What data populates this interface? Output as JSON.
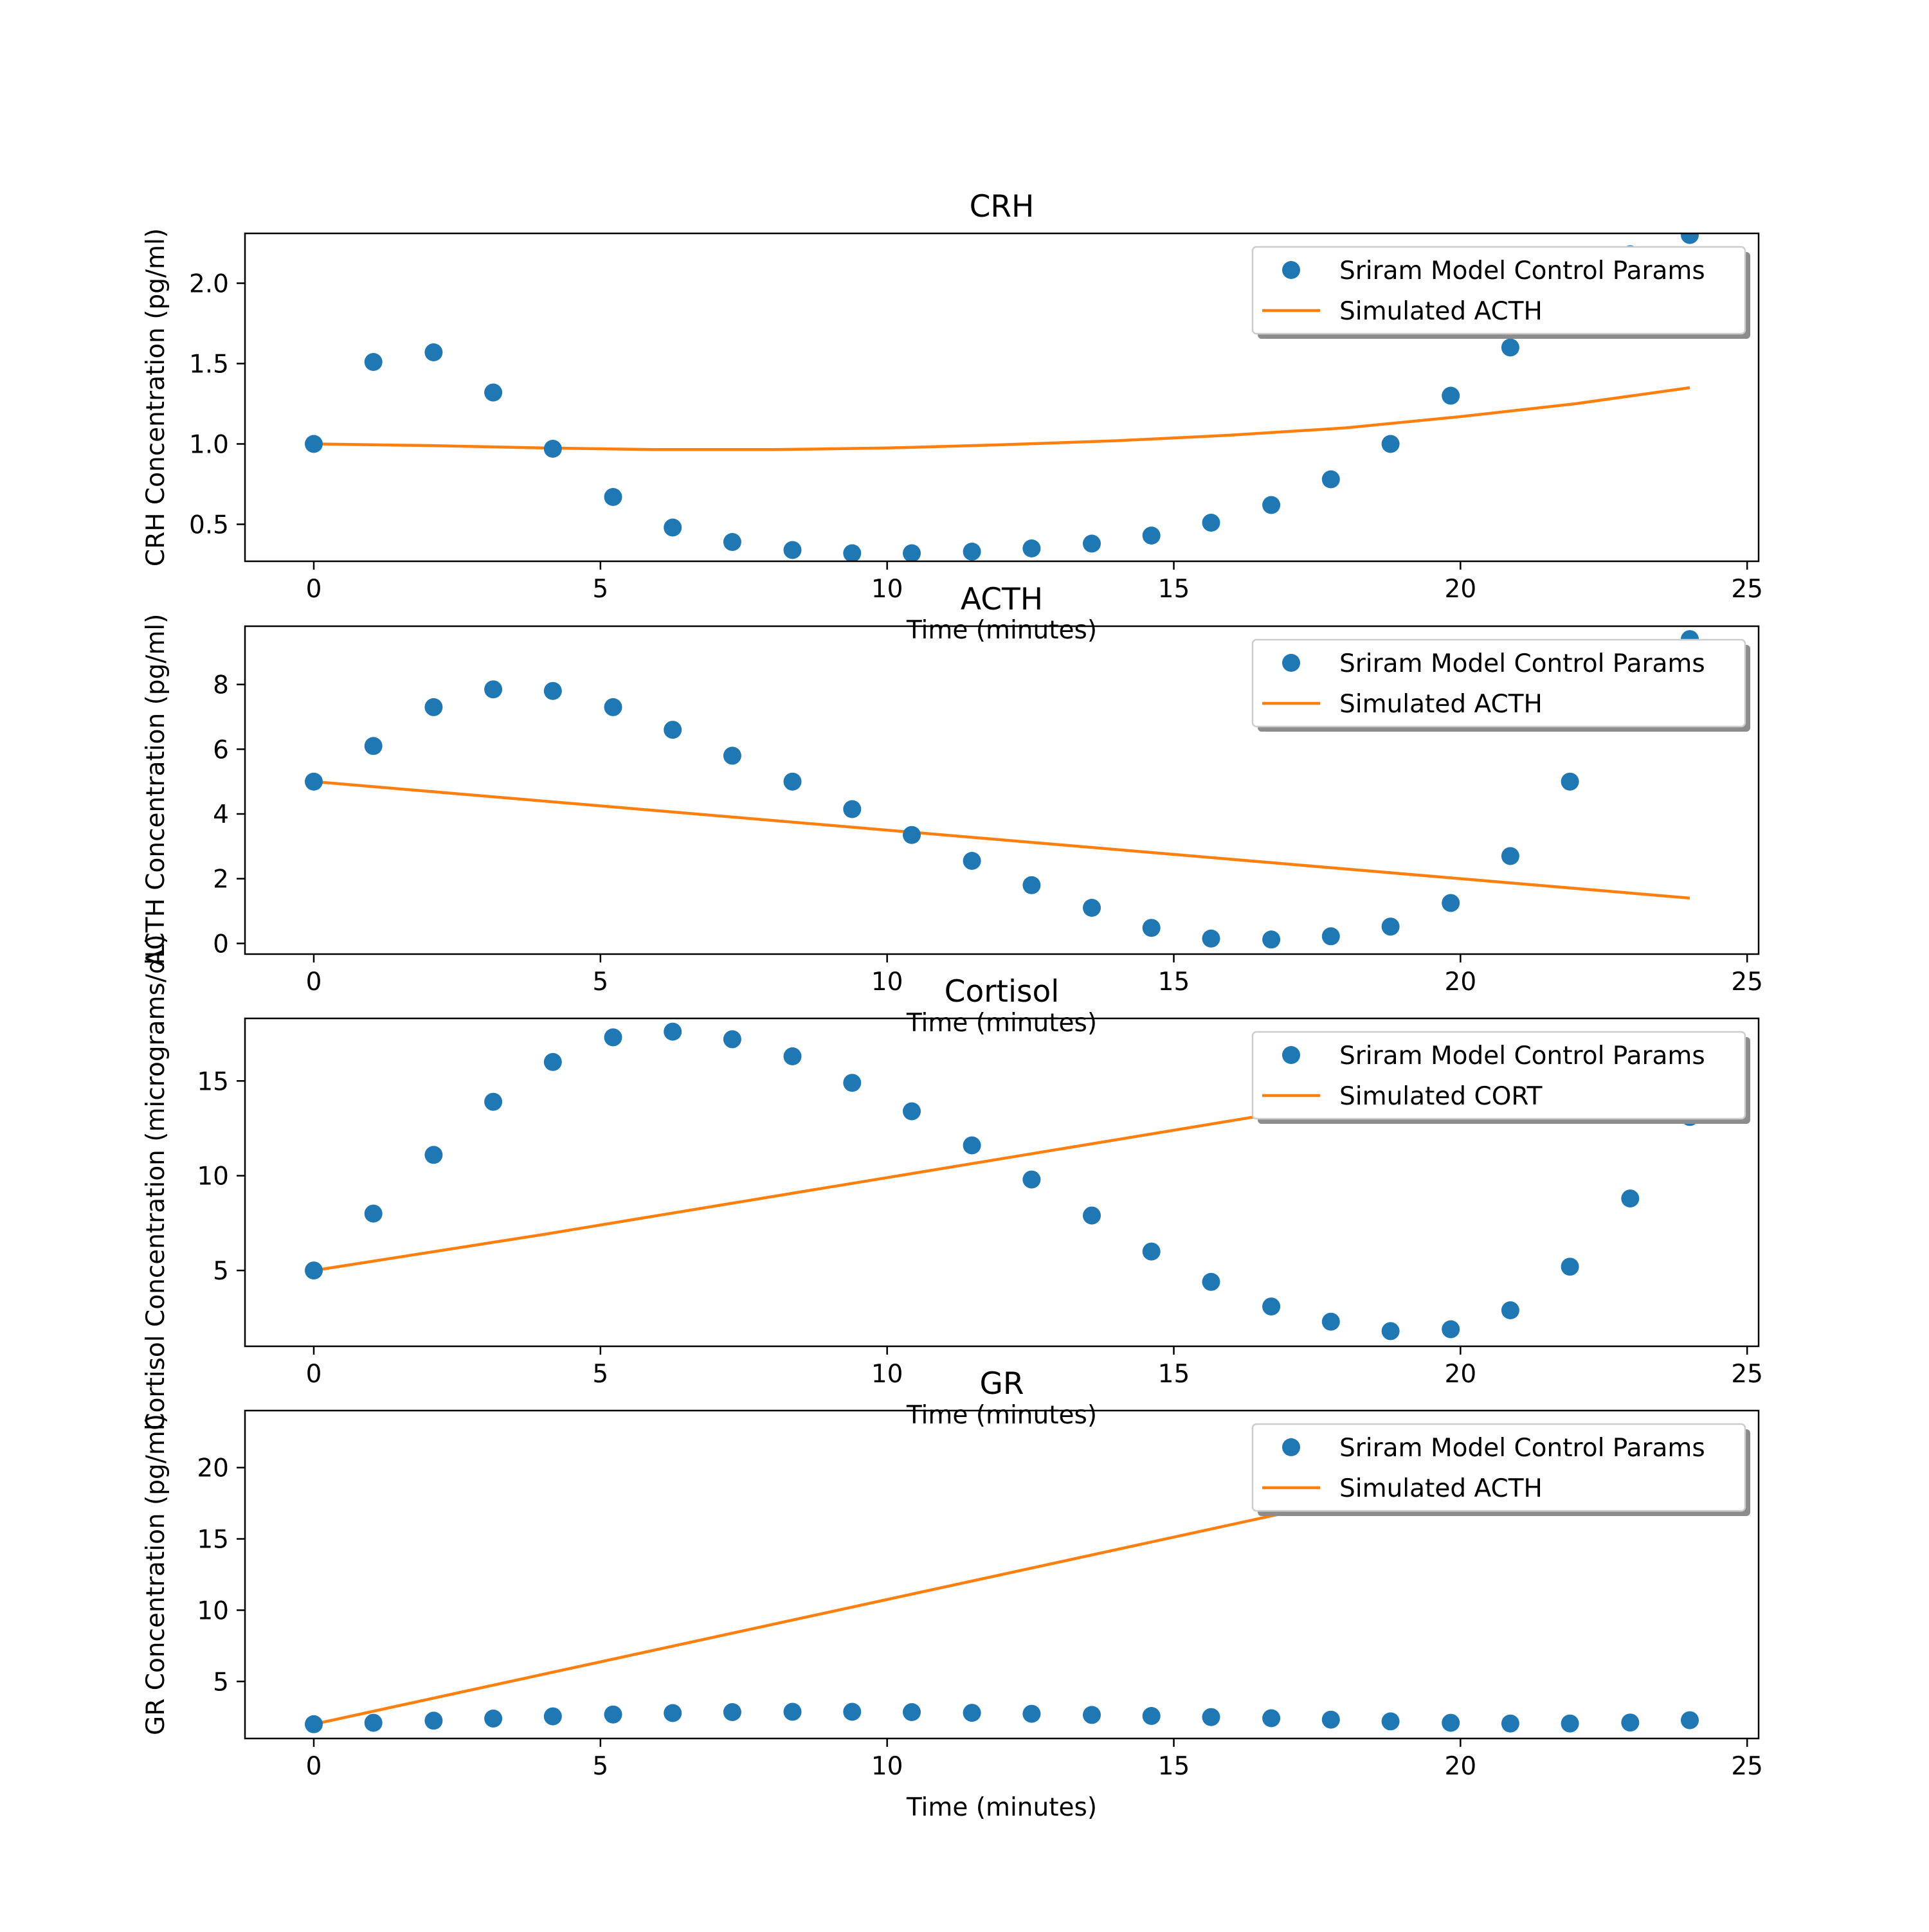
{
  "colors": {
    "scatter": "#1f77b4",
    "line": "#ff7f0e",
    "axis": "#000000",
    "legend_border": "#cccccc"
  },
  "chart_data": [
    {
      "type": "scatter",
      "title": "CRH",
      "xlabel": "Time (minutes)",
      "ylabel": "CRH Concentration (pg/ml)",
      "xlim": [
        -1.2,
        25.2
      ],
      "ylim": [
        0.27,
        2.31
      ],
      "xticks": [
        0,
        5,
        10,
        15,
        20,
        25
      ],
      "xtick_labels": [
        "0",
        "5",
        "10",
        "15",
        "20",
        "25"
      ],
      "yticks": [
        0.5,
        1.0,
        1.5,
        2.0
      ],
      "ytick_labels": [
        "0.5",
        "1.0",
        "1.5",
        "2.0"
      ],
      "legend_position": "upper right",
      "series": [
        {
          "name": "Sriram Model Control Params",
          "kind": "scatter",
          "x": [
            0,
            1.04,
            2.09,
            3.13,
            4.17,
            5.22,
            6.26,
            7.3,
            8.35,
            9.39,
            10.43,
            11.48,
            12.52,
            13.57,
            14.61,
            15.65,
            16.7,
            17.74,
            18.78,
            19.83,
            20.87,
            21.91,
            22.96,
            24.0
          ],
          "y": [
            1.0,
            1.51,
            1.57,
            1.32,
            0.97,
            0.67,
            0.48,
            0.39,
            0.34,
            0.32,
            0.32,
            0.33,
            0.35,
            0.38,
            0.43,
            0.51,
            0.62,
            0.78,
            1.0,
            1.3,
            1.6,
            1.95,
            2.18,
            2.3
          ]
        },
        {
          "name": "Simulated ACTH",
          "kind": "line",
          "x": [
            0,
            2,
            4,
            6,
            8,
            10,
            12,
            14,
            16,
            18,
            20,
            22,
            24
          ],
          "y": [
            1.0,
            0.99,
            0.975,
            0.965,
            0.965,
            0.975,
            0.995,
            1.02,
            1.055,
            1.1,
            1.17,
            1.25,
            1.35
          ]
        }
      ]
    },
    {
      "type": "scatter",
      "title": "ACTH",
      "xlabel": "Time (minutes)",
      "ylabel": "ACTH Concentration (pg/ml)",
      "xlim": [
        -1.2,
        25.2
      ],
      "ylim": [
        -0.33,
        9.8
      ],
      "xticks": [
        0,
        5,
        10,
        15,
        20,
        25
      ],
      "xtick_labels": [
        "0",
        "5",
        "10",
        "15",
        "20",
        "25"
      ],
      "yticks": [
        0,
        2,
        4,
        6,
        8
      ],
      "ytick_labels": [
        "0",
        "2",
        "4",
        "6",
        "8"
      ],
      "legend_position": "upper right",
      "series": [
        {
          "name": "Sriram Model Control Params",
          "kind": "scatter",
          "x": [
            0,
            1.04,
            2.09,
            3.13,
            4.17,
            5.22,
            6.26,
            7.3,
            8.35,
            9.39,
            10.43,
            11.48,
            12.52,
            13.57,
            14.61,
            15.65,
            16.7,
            17.74,
            18.78,
            19.83,
            20.87,
            21.91,
            22.96,
            24.0
          ],
          "y": [
            5.0,
            6.1,
            7.3,
            7.85,
            7.8,
            7.3,
            6.6,
            5.8,
            5.0,
            4.15,
            3.35,
            2.55,
            1.8,
            1.1,
            0.48,
            0.15,
            0.12,
            0.22,
            0.52,
            1.25,
            2.7,
            5.0,
            7.9,
            9.4
          ]
        },
        {
          "name": "Simulated ACTH",
          "kind": "line",
          "x": [
            0,
            24.0
          ],
          "y": [
            5.0,
            1.4
          ]
        }
      ]
    },
    {
      "type": "scatter",
      "title": "Cortisol",
      "xlabel": "Time (minutes)",
      "ylabel": "Cortisol Concentration (micrograms/dL)",
      "xlim": [
        -1.2,
        25.2
      ],
      "ylim": [
        1.0,
        18.3
      ],
      "xticks": [
        0,
        5,
        10,
        15,
        20,
        25
      ],
      "xtick_labels": [
        "0",
        "5",
        "10",
        "15",
        "20",
        "25"
      ],
      "yticks": [
        5,
        10,
        15
      ],
      "ytick_labels": [
        "5",
        "10",
        "15"
      ],
      "legend_position": "upper right",
      "series": [
        {
          "name": "Sriram Model Control Params",
          "kind": "scatter",
          "x": [
            0,
            1.04,
            2.09,
            3.13,
            4.17,
            5.22,
            6.26,
            7.3,
            8.35,
            9.39,
            10.43,
            11.48,
            12.52,
            13.57,
            14.61,
            15.65,
            16.7,
            17.74,
            18.78,
            19.83,
            20.87,
            21.91,
            22.96,
            24.0
          ],
          "y": [
            5.0,
            8.0,
            11.1,
            13.9,
            16.0,
            17.3,
            17.6,
            17.2,
            16.3,
            14.9,
            13.4,
            11.6,
            9.8,
            7.9,
            6.0,
            4.4,
            3.1,
            2.3,
            1.8,
            1.9,
            2.9,
            5.2,
            8.8,
            13.1
          ]
        },
        {
          "name": "Simulated CORT",
          "kind": "line",
          "x": [
            0,
            4,
            8,
            12,
            16,
            20,
            24
          ],
          "y": [
            5.0,
            6.9,
            8.9,
            10.9,
            12.9,
            14.9,
            16.9
          ]
        }
      ]
    },
    {
      "type": "scatter",
      "title": "GR",
      "xlabel": "Time (minutes)",
      "ylabel": "GR Concentration (pg/ml)",
      "xlim": [
        -1.2,
        25.2
      ],
      "ylim": [
        1.0,
        24.0
      ],
      "xticks": [
        0,
        5,
        10,
        15,
        20,
        25
      ],
      "xtick_labels": [
        "0",
        "5",
        "10",
        "15",
        "20",
        "25"
      ],
      "yticks": [
        5,
        10,
        15,
        20
      ],
      "ytick_labels": [
        "5",
        "10",
        "15",
        "20"
      ],
      "legend_position": "upper right",
      "series": [
        {
          "name": "Sriram Model Control Params",
          "kind": "scatter",
          "x": [
            0,
            1.04,
            2.09,
            3.13,
            4.17,
            5.22,
            6.26,
            7.3,
            8.35,
            9.39,
            10.43,
            11.48,
            12.52,
            13.57,
            14.61,
            15.65,
            16.7,
            17.74,
            18.78,
            19.83,
            20.87,
            21.91,
            22.96,
            24.0
          ],
          "y": [
            2.0,
            2.1,
            2.25,
            2.4,
            2.55,
            2.68,
            2.78,
            2.85,
            2.87,
            2.87,
            2.85,
            2.8,
            2.73,
            2.65,
            2.58,
            2.5,
            2.42,
            2.32,
            2.2,
            2.1,
            2.05,
            2.05,
            2.12,
            2.28
          ]
        },
        {
          "name": "Simulated ACTH",
          "kind": "line",
          "x": [
            0,
            24.0
          ],
          "y": [
            2.0,
            23.0
          ]
        }
      ]
    }
  ]
}
